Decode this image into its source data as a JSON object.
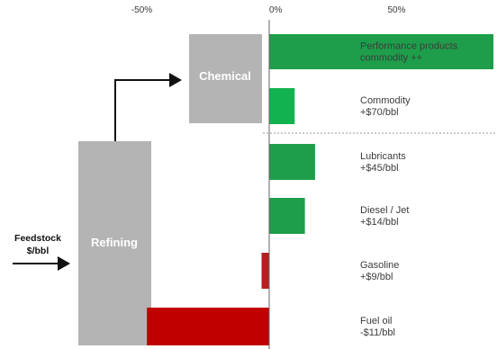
{
  "chart_data": {
    "type": "bar",
    "orientation": "horizontal",
    "x_ticks": [
      "-50%",
      "0%",
      "50%"
    ],
    "x_tick_values": [
      -50,
      0,
      50
    ],
    "xlim": [
      -75,
      90
    ],
    "categories": [
      [
        "Performance products",
        "commodity ++"
      ],
      [
        "Commodity",
        "+$70/bbl"
      ],
      [
        "Lubricants",
        "+$45/bbl"
      ],
      [
        "Diesel / Jet",
        "+$14/bbl"
      ],
      [
        "Gasoline",
        "+$9/bbl"
      ],
      [
        "Fuel oil",
        "-$11/bbl"
      ]
    ],
    "values": [
      88,
      10,
      18,
      14,
      -3,
      -48
    ],
    "colors": [
      "#1e9e4a",
      "#12b24e",
      "#1e9e4a",
      "#1e9e4a",
      "#b51f1f",
      "#c00000"
    ],
    "grid": false,
    "legend": "none"
  },
  "flow": {
    "chemical_label": "Chemical",
    "refining_label": "Refining",
    "feedstock_label": [
      "Feedstock",
      "$/bbl"
    ],
    "colors": {
      "block": "#b4b4b4",
      "separator": "#9a9a9a",
      "arrow": "#111111"
    }
  }
}
